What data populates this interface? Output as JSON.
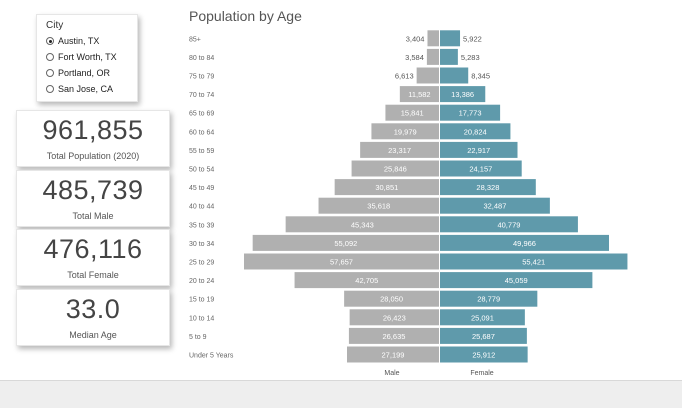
{
  "city_filter": {
    "title": "City",
    "options": [
      "Austin, TX",
      "Fort Worth, TX",
      "Portland, OR",
      "San Jose, CA"
    ],
    "selected": "Austin, TX"
  },
  "kpis": [
    {
      "value": "961,855",
      "label": "Total Population (2020)"
    },
    {
      "value": "485,739",
      "label": "Total Male"
    },
    {
      "value": "476,116",
      "label": "Total Female"
    },
    {
      "value": "33.0",
      "label": "Median Age"
    }
  ],
  "colors": {
    "male": "#b0b0b0",
    "female": "#5f9aab"
  },
  "chart_data": {
    "type": "bar",
    "title": "Population by Age",
    "orientation": "horizontal-diverging",
    "categories": [
      "85+",
      "80 to 84",
      "75 to 79",
      "70 to 74",
      "65 to 69",
      "60 to 64",
      "55 to 59",
      "50 to 54",
      "45 to 49",
      "40 to 44",
      "35 to 39",
      "30 to 34",
      "25 to 29",
      "20 to 24",
      "15 to 19",
      "10 to 14",
      "5 to 9",
      "Under 5 Years"
    ],
    "series": [
      {
        "name": "Male",
        "values": [
          3404,
          3584,
          6613,
          11582,
          15841,
          19979,
          23317,
          25846,
          30851,
          35618,
          45343,
          55092,
          57657,
          42705,
          28050,
          26423,
          26635,
          27199
        ],
        "labels": [
          "3,404",
          "3,584",
          "6,613",
          "11,582",
          "15,841",
          "19,979",
          "23,317",
          "25,846",
          "30,851",
          "35,618",
          "45,343",
          "55,092",
          "57,657",
          "42,705",
          "28,050",
          "26,423",
          "26,635",
          "27,199"
        ]
      },
      {
        "name": "Female",
        "values": [
          5922,
          5283,
          8345,
          13386,
          17773,
          20824,
          22917,
          24157,
          28328,
          32487,
          40779,
          49966,
          55421,
          45059,
          28779,
          25091,
          25687,
          25912
        ],
        "labels": [
          "5,922",
          "5,283",
          "8,345",
          "13,386",
          "17,773",
          "20,824",
          "22,917",
          "24,157",
          "28,328",
          "32,487",
          "40,779",
          "49,966",
          "55,421",
          "45,059",
          "28,779",
          "25,091",
          "25,687",
          "25,912"
        ]
      }
    ],
    "xlabel_male": "Male",
    "xlabel_female": "Female"
  }
}
